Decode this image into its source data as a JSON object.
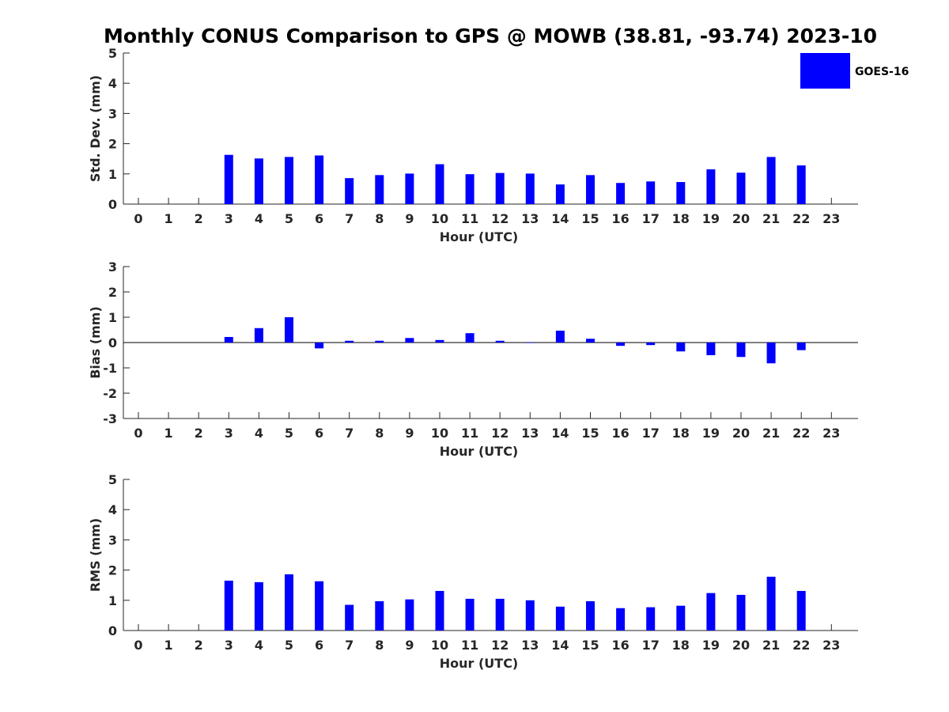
{
  "figure": {
    "title": "Monthly CONUS Comparison to GPS @ MOWB (38.81, -93.74) 2023-10",
    "legend": {
      "label": "GOES-16",
      "color": "#0000ff",
      "placement": "top-right"
    }
  },
  "chart_data": [
    {
      "type": "bar",
      "xlabel": "Hour (UTC)",
      "ylabel": "Std. Dev. (mm)",
      "ylim": [
        0,
        5
      ],
      "yticks": [
        0,
        1,
        2,
        3,
        4,
        5
      ],
      "categories": [
        0,
        1,
        2,
        3,
        4,
        5,
        6,
        7,
        8,
        9,
        10,
        11,
        12,
        13,
        14,
        15,
        16,
        17,
        18,
        19,
        20,
        21,
        22,
        23
      ],
      "series": [
        {
          "name": "GOES-16",
          "values": [
            null,
            null,
            null,
            1.63,
            1.51,
            1.56,
            1.61,
            0.86,
            0.96,
            1.01,
            1.32,
            0.99,
            1.03,
            1.01,
            0.65,
            0.96,
            0.7,
            0.75,
            0.73,
            1.15,
            1.04,
            1.56,
            1.28,
            null
          ]
        }
      ],
      "grid": false,
      "legend": "top-right"
    },
    {
      "type": "bar",
      "xlabel": "Hour (UTC)",
      "ylabel": "Bias (mm)",
      "ylim": [
        -3,
        3
      ],
      "yticks": [
        -3,
        -2,
        -1,
        0,
        1,
        2,
        3
      ],
      "categories": [
        0,
        1,
        2,
        3,
        4,
        5,
        6,
        7,
        8,
        9,
        10,
        11,
        12,
        13,
        14,
        15,
        16,
        17,
        18,
        19,
        20,
        21,
        22,
        23
      ],
      "series": [
        {
          "name": "GOES-16",
          "values": [
            null,
            null,
            null,
            0.22,
            0.57,
            1.0,
            -0.23,
            0.07,
            0.07,
            0.18,
            0.1,
            0.37,
            0.07,
            0.0,
            0.47,
            0.15,
            -0.13,
            -0.1,
            -0.35,
            -0.5,
            -0.57,
            -0.82,
            -0.3,
            null
          ]
        }
      ],
      "grid": false,
      "zero_line": true
    },
    {
      "type": "bar",
      "xlabel": "Hour (UTC)",
      "ylabel": "RMS (mm)",
      "ylim": [
        0,
        5
      ],
      "yticks": [
        0,
        1,
        2,
        3,
        4,
        5
      ],
      "categories": [
        0,
        1,
        2,
        3,
        4,
        5,
        6,
        7,
        8,
        9,
        10,
        11,
        12,
        13,
        14,
        15,
        16,
        17,
        18,
        19,
        20,
        21,
        22,
        23
      ],
      "series": [
        {
          "name": "GOES-16",
          "values": [
            null,
            null,
            null,
            1.65,
            1.6,
            1.86,
            1.63,
            0.85,
            0.97,
            1.03,
            1.31,
            1.05,
            1.05,
            1.0,
            0.79,
            0.97,
            0.74,
            0.77,
            0.82,
            1.24,
            1.18,
            1.78,
            1.31,
            null
          ]
        }
      ],
      "grid": false
    }
  ]
}
